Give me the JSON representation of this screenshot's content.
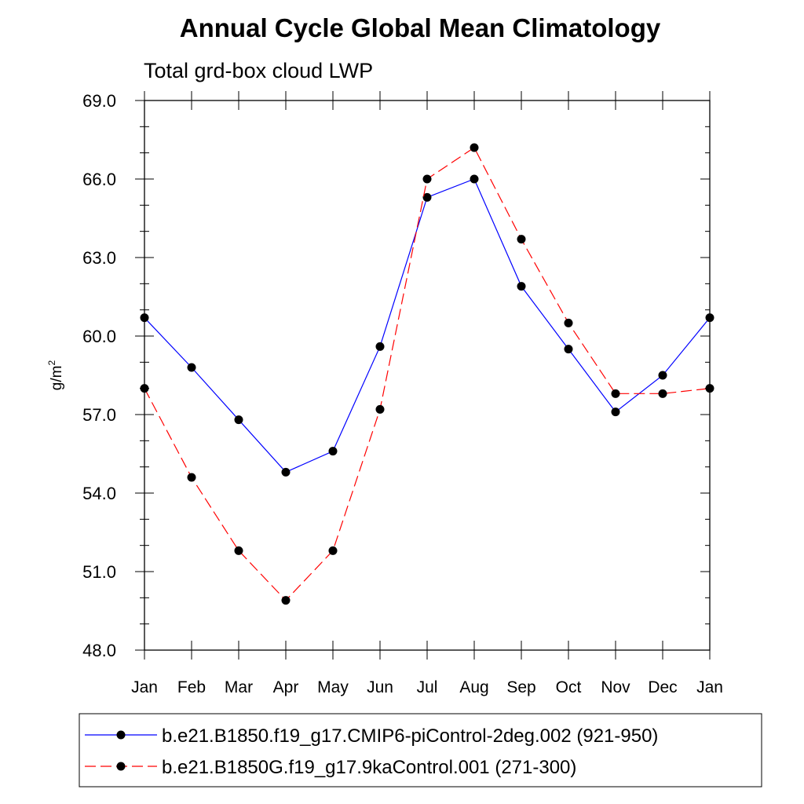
{
  "chart_data": {
    "type": "line",
    "title": "Annual Cycle Global Mean Climatology",
    "subtitle": "Total grd-box cloud LWP",
    "ylabel": "g/m",
    "ylabel_sup": "2",
    "xlabel": "",
    "ylim": [
      48.0,
      69.0
    ],
    "yticks": [
      48.0,
      51.0,
      54.0,
      57.0,
      60.0,
      63.0,
      66.0,
      69.0
    ],
    "ytick_labels": [
      "48.0",
      "51.0",
      "54.0",
      "57.0",
      "60.0",
      "63.0",
      "66.0",
      "69.0"
    ],
    "categories": [
      "Jan",
      "Feb",
      "Mar",
      "Apr",
      "May",
      "Jun",
      "Jul",
      "Aug",
      "Sep",
      "Oct",
      "Nov",
      "Dec",
      "Jan"
    ],
    "series": [
      {
        "name": "b.e21.B1850.f19_g17.CMIP6-piControl-2deg.002 (921-950)",
        "color": "#0000ff",
        "dash": "solid",
        "values": [
          60.7,
          58.8,
          56.8,
          54.8,
          55.6,
          59.6,
          65.3,
          66.0,
          61.9,
          59.5,
          57.1,
          58.5,
          60.7
        ]
      },
      {
        "name": "b.e21.B1850G.f19_g17.9kaControl.001 (271-300)",
        "color": "#ff0000",
        "dash": "dashed",
        "values": [
          58.0,
          54.6,
          51.8,
          49.9,
          51.8,
          57.2,
          66.0,
          67.2,
          63.7,
          60.5,
          57.8,
          57.8,
          58.0
        ]
      }
    ]
  }
}
